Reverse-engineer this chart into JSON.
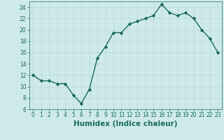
{
  "x": [
    0,
    1,
    2,
    3,
    4,
    5,
    6,
    7,
    8,
    9,
    10,
    11,
    12,
    13,
    14,
    15,
    16,
    17,
    18,
    19,
    20,
    21,
    22,
    23
  ],
  "y": [
    12,
    11,
    11,
    10.5,
    10.5,
    8.5,
    7,
    9.5,
    15,
    17,
    19.5,
    19.5,
    21,
    21.5,
    22,
    22.5,
    24.5,
    23,
    22.5,
    23,
    22,
    20,
    18.5,
    16
  ],
  "line_color": "#1a6b5a",
  "marker": "D",
  "marker_size": 2.0,
  "bg_color": "#ceeae8",
  "grid_color": "#b8d8d5",
  "xlabel": "Humidex (Indice chaleur)",
  "xlim": [
    -0.5,
    23.5
  ],
  "ylim": [
    6,
    25
  ],
  "yticks": [
    6,
    8,
    10,
    12,
    14,
    16,
    18,
    20,
    22,
    24
  ],
  "xticks": [
    0,
    1,
    2,
    3,
    4,
    5,
    6,
    7,
    8,
    9,
    10,
    11,
    12,
    13,
    14,
    15,
    16,
    17,
    18,
    19,
    20,
    21,
    22,
    23
  ],
  "tick_label_fontsize": 5.5,
  "xlabel_fontsize": 7.5,
  "linewidth": 1.0
}
